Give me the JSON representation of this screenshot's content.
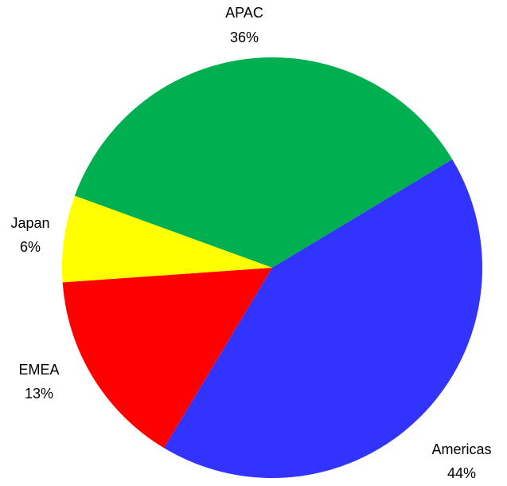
{
  "chart_data": {
    "type": "pie",
    "slices": [
      {
        "label": "APAC",
        "value": 36,
        "value_label": "36%",
        "color": "#00b050"
      },
      {
        "label": "Americas",
        "value": 44,
        "value_label": "44%",
        "color": "#3333ff"
      },
      {
        "label": "EMEA",
        "value": 13,
        "value_label": "13%",
        "color": "#ff0000"
      },
      {
        "label": "Japan",
        "value": 6,
        "value_label": "6%",
        "color": "#ffff00"
      }
    ],
    "units": "%",
    "legend": "none",
    "data_labels": "outside"
  }
}
